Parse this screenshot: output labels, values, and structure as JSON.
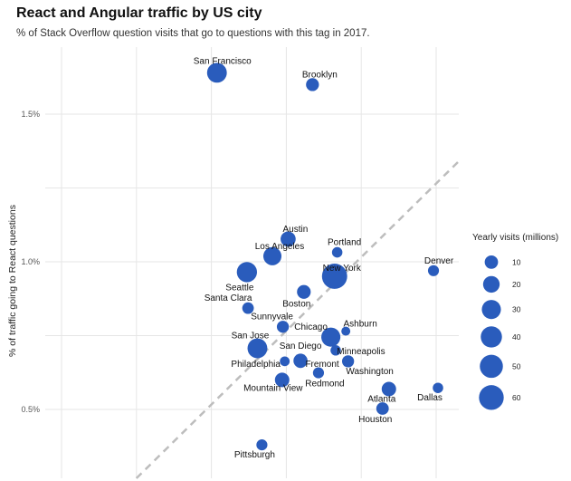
{
  "chart_data": {
    "type": "scatter",
    "title": "React and Angular traffic by US city",
    "subtitle": "% of Stack Overflow question visits that go to questions with this tag in 2017.",
    "xlabel": "",
    "ylabel": "% of traffic going to React questions",
    "xlim": [
      0,
      1
    ],
    "ylim": [
      0.3,
      1.7
    ],
    "y_ticks": [
      0.5,
      1.0,
      1.5
    ],
    "y_tick_labels": [
      "0.5%",
      "1.0%",
      "1.5%"
    ],
    "x_tick_labels": [],
    "grid": true,
    "legend": {
      "title": "Yearly visits (millions)",
      "placement": "right",
      "sizes": [
        10,
        20,
        30,
        40,
        50,
        60
      ]
    },
    "reference_line": "diagonal dashed",
    "points": [
      {
        "label": "San Francisco",
        "x": 0.41,
        "y": 1.64,
        "size": 33
      },
      {
        "label": "Brooklyn",
        "x": 0.665,
        "y": 1.6,
        "size": 9
      },
      {
        "label": "Austin",
        "x": 0.6,
        "y": 1.077,
        "size": 15
      },
      {
        "label": "Los Angeles",
        "x": 0.558,
        "y": 1.019,
        "size": 26
      },
      {
        "label": "Portland",
        "x": 0.731,
        "y": 1.032,
        "size": 4
      },
      {
        "label": "Denver",
        "x": 0.988,
        "y": 0.97,
        "size": 5
      },
      {
        "label": "New York",
        "x": 0.724,
        "y": 0.951,
        "size": 63
      },
      {
        "label": "Seattle",
        "x": 0.49,
        "y": 0.965,
        "size": 35
      },
      {
        "label": "Boston",
        "x": 0.642,
        "y": 0.898,
        "size": 11
      },
      {
        "label": "Santa Clara",
        "x": 0.493,
        "y": 0.843,
        "size": 6
      },
      {
        "label": "Sunnyvale",
        "x": 0.586,
        "y": 0.78,
        "size": 7
      },
      {
        "label": "Ashburn",
        "x": 0.754,
        "y": 0.765,
        "size": 2
      },
      {
        "label": "Chicago",
        "x": 0.714,
        "y": 0.745,
        "size": 30
      },
      {
        "label": "San Jose",
        "x": 0.518,
        "y": 0.707,
        "size": 33
      },
      {
        "label": "Minneapolis",
        "x": 0.727,
        "y": 0.7,
        "size": 4
      },
      {
        "label": "San Diego",
        "x": 0.633,
        "y": 0.665,
        "size": 12
      },
      {
        "label": "Philadelphia",
        "x": 0.591,
        "y": 0.663,
        "size": 3
      },
      {
        "label": "Fremont",
        "x": 0.633,
        "y": 0.66,
        "size": 6
      },
      {
        "label": "Washington",
        "x": 0.76,
        "y": 0.663,
        "size": 7
      },
      {
        "label": "Redmond",
        "x": 0.681,
        "y": 0.624,
        "size": 5
      },
      {
        "label": "Mountain View",
        "x": 0.584,
        "y": 0.6,
        "size": 13
      },
      {
        "label": "Atlanta",
        "x": 0.869,
        "y": 0.569,
        "size": 13
      },
      {
        "label": "Dallas",
        "x": 1.0,
        "y": 0.573,
        "size": 4
      },
      {
        "label": "Houston",
        "x": 0.852,
        "y": 0.503,
        "size": 8
      },
      {
        "label": "Pittsburgh",
        "x": 0.53,
        "y": 0.38,
        "size": 5
      }
    ]
  }
}
